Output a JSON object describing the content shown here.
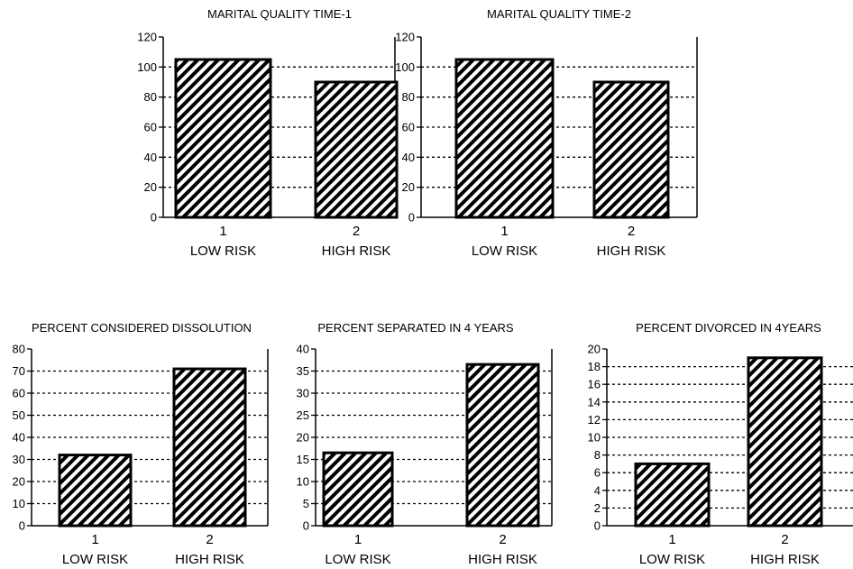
{
  "chart_data": [
    {
      "type": "bar",
      "title": "MARITAL QUALITY TIME-1",
      "categories": [
        "1",
        "2"
      ],
      "category_labels": [
        "LOW RISK",
        "HIGH RISK"
      ],
      "values": [
        105,
        90
      ],
      "ylim": [
        0,
        120
      ],
      "yticks": [
        "0",
        "20",
        "40",
        "60",
        "80",
        "100",
        "120"
      ],
      "grid": "dotted-horizontal"
    },
    {
      "type": "bar",
      "title": "MARITAL QUALITY TIME-2",
      "categories": [
        "1",
        "2"
      ],
      "category_labels": [
        "LOW RISK",
        "HIGH RISK"
      ],
      "values": [
        105,
        90
      ],
      "ylim": [
        0,
        120
      ],
      "yticks": [
        "0",
        "20",
        "40",
        "60",
        "80",
        "100",
        "120"
      ],
      "grid": "dotted-horizontal"
    },
    {
      "type": "bar",
      "title": "PERCENT CONSIDERED DISSOLUTION",
      "categories": [
        "1",
        "2"
      ],
      "category_labels": [
        "LOW RISK",
        "HIGH RISK"
      ],
      "values": [
        32,
        71
      ],
      "ylim": [
        0,
        80
      ],
      "yticks": [
        "0",
        "10",
        "20",
        "30",
        "40",
        "50",
        "60",
        "70",
        "80"
      ],
      "grid": "dotted-horizontal"
    },
    {
      "type": "bar",
      "title": "PERCENT SEPARATED IN 4 YEARS",
      "categories": [
        "1",
        "2"
      ],
      "category_labels": [
        "LOW RISK",
        "HIGH RISK"
      ],
      "values": [
        16.5,
        36.5
      ],
      "ylim": [
        0,
        40
      ],
      "yticks": [
        "0",
        "5",
        "10",
        "15",
        "20",
        "25",
        "30",
        "35",
        "40"
      ],
      "grid": "dotted-horizontal"
    },
    {
      "type": "bar",
      "title": "PERCENT DIVORCED IN 4YEARS",
      "categories": [
        "1",
        "2"
      ],
      "category_labels": [
        "LOW RISK",
        "HIGH RISK"
      ],
      "values": [
        7,
        19
      ],
      "ylim": [
        0,
        20
      ],
      "yticks": [
        "0",
        "2",
        "4",
        "6",
        "8",
        "10",
        "12",
        "14",
        "16",
        "18",
        "20"
      ],
      "grid": "dotted-horizontal"
    }
  ]
}
